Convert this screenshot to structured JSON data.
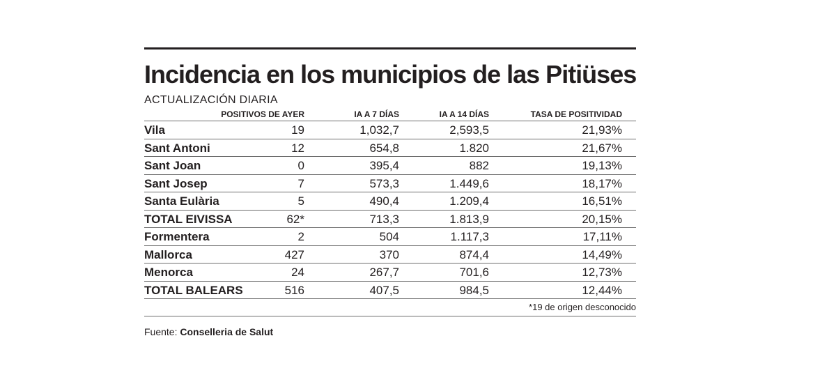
{
  "title": "Incidencia en los municipios de las Pitiüses",
  "subtitle": "ACTUALIZACIÓN DIARIA",
  "columns": [
    "",
    "POSITIVOS DE AYER",
    "IA A 7 DÍAS",
    "IA A 14 DÍAS",
    "TASA DE POSITIVIDAD"
  ],
  "rows": [
    [
      "Vila",
      "19",
      "1,032,7",
      "2,593,5",
      "21,93%"
    ],
    [
      "Sant Antoni",
      "12",
      "654,8",
      "1.820",
      "21,67%"
    ],
    [
      "Sant Joan",
      "0",
      "395,4",
      "882",
      "19,13%"
    ],
    [
      "Sant Josep",
      "7",
      "573,3",
      "1.449,6",
      "18,17%"
    ],
    [
      "Santa Eulària",
      "5",
      "490,4",
      "1.209,4",
      "16,51%"
    ],
    [
      "TOTAL EIVISSA",
      "62*",
      "713,3",
      "1.813,9",
      "20,15%"
    ],
    [
      "Formentera",
      "2",
      "504",
      "1.117,3",
      "17,11%"
    ],
    [
      "Mallorca",
      "427",
      "370",
      "874,4",
      "14,49%"
    ],
    [
      "Menorca",
      "24",
      "267,7",
      "701,6",
      "12,73%"
    ],
    [
      "TOTAL BALEARS",
      "516",
      "407,5",
      "984,5",
      "12,44%"
    ]
  ],
  "footnote": "*19 de origen desconocido",
  "source": {
    "label": "Fuente:",
    "name": "Conselleria de Salut"
  }
}
